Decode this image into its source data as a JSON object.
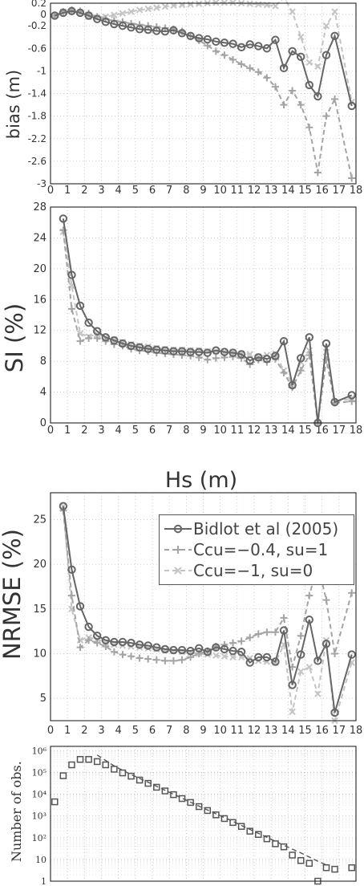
{
  "chart_data": [
    {
      "type": "line",
      "ylabel": "bias (m)",
      "xlim": [
        0,
        18
      ],
      "ylim": [
        -3,
        0.2
      ],
      "xticks": [
        "0",
        "1",
        "2",
        "3",
        "4",
        "5",
        "6",
        "7",
        "8",
        "9",
        "10",
        "11",
        "12",
        "13",
        "14",
        "15",
        "16",
        "17",
        "18"
      ],
      "yticks": [
        "0.2",
        "0",
        "-0.2",
        "-0.6",
        "-1",
        "-1.4",
        "-1.8",
        "-2.2",
        "-2.6",
        "-3"
      ],
      "ytick_values": [
        0.2,
        0,
        -0.2,
        -0.6,
        -1,
        -1.4,
        -1.8,
        -2.2,
        -2.6,
        -3
      ],
      "grid": true,
      "series": [
        {
          "x": [
            0.25,
            0.75,
            1.25,
            1.75,
            2.25,
            2.75,
            3.25,
            3.75,
            4.25,
            4.75,
            5.25,
            5.75,
            6.25,
            6.75,
            7.25,
            7.75,
            8.25,
            8.75,
            9.25,
            9.75,
            10.25,
            10.75,
            11.25,
            11.75,
            12.25,
            12.75,
            13.25,
            13.75,
            14.25,
            14.75,
            15.25,
            15.75,
            16.25,
            16.75,
            17.75
          ],
          "y": [
            -0.02,
            0.03,
            0.06,
            0.03,
            -0.02,
            -0.08,
            -0.13,
            -0.17,
            -0.2,
            -0.23,
            -0.26,
            -0.27,
            -0.29,
            -0.3,
            -0.28,
            -0.33,
            -0.38,
            -0.42,
            -0.44,
            -0.48,
            -0.5,
            -0.52,
            -0.58,
            -0.53,
            -0.56,
            -0.6,
            -0.45,
            -0.95,
            -0.65,
            -0.75,
            -1.25,
            -1.45,
            -0.72,
            -0.38,
            -1.62
          ]
        },
        {
          "x": [
            0.25,
            0.75,
            1.25,
            1.75,
            2.25,
            2.75,
            3.25,
            3.75,
            4.25,
            4.75,
            5.25,
            5.75,
            6.25,
            6.75,
            7.25,
            7.75,
            8.25,
            8.75,
            9.25,
            9.75,
            10.25,
            10.75,
            11.25,
            11.75,
            12.25,
            12.75,
            13.25,
            13.75,
            14.25,
            14.75,
            15.25,
            15.75,
            16.25,
            16.75,
            17.75
          ],
          "y": [
            -0.02,
            0.05,
            0.08,
            0.06,
            0.02,
            -0.04,
            -0.08,
            -0.11,
            -0.13,
            -0.16,
            -0.18,
            -0.2,
            -0.22,
            -0.24,
            -0.26,
            -0.3,
            -0.38,
            -0.46,
            -0.55,
            -0.65,
            -0.72,
            -0.8,
            -0.88,
            -0.95,
            -1.02,
            -1.12,
            -1.28,
            -1.6,
            -1.35,
            -1.6,
            -2.0,
            -2.8,
            -1.8,
            -1.5,
            -2.9
          ]
        },
        {
          "x": [
            0.25,
            0.75,
            1.25,
            1.75,
            2.25,
            2.75,
            3.25,
            3.75,
            4.25,
            4.75,
            5.25,
            5.75,
            6.25,
            6.75,
            7.25,
            7.75,
            8.25,
            8.75,
            9.25,
            9.75,
            10.25,
            10.75,
            11.25,
            11.75,
            12.25,
            12.75,
            13.25,
            13.75,
            14.25,
            14.75,
            15.25,
            15.75,
            16.25,
            16.75,
            17.75
          ],
          "y": [
            -0.02,
            0.05,
            0.06,
            0.03,
            -0.04,
            -0.06,
            -0.04,
            -0.01,
            0.02,
            0.05,
            0.08,
            0.1,
            0.12,
            0.14,
            0.16,
            0.17,
            0.18,
            0.19,
            0.2,
            0.21,
            0.21,
            0.21,
            0.2,
            0.19,
            0.18,
            0.17,
            0.15,
            0.3,
            0.05,
            -0.4,
            -0.85,
            -0.92,
            -0.2,
            0.05,
            -1.55
          ]
        }
      ]
    },
    {
      "type": "line",
      "ylabel": "SI (%)",
      "xlabel": "Hs (m)",
      "xlim": [
        0,
        18
      ],
      "ylim": [
        0,
        28
      ],
      "xticks": [
        "0",
        "1",
        "2",
        "3",
        "4",
        "5",
        "6",
        "7",
        "8",
        "9",
        "10",
        "11",
        "12",
        "13",
        "14",
        "15",
        "16",
        "17",
        "18"
      ],
      "yticks": [
        "0",
        "4",
        "8",
        "12",
        "16",
        "20",
        "24",
        "28"
      ],
      "ytick_values": [
        0,
        4,
        8,
        12,
        16,
        20,
        24,
        28
      ],
      "grid": true,
      "series": [
        {
          "x": [
            0.75,
            1.25,
            1.75,
            2.25,
            2.75,
            3.25,
            3.75,
            4.25,
            4.75,
            5.25,
            5.75,
            6.25,
            6.75,
            7.25,
            7.75,
            8.25,
            8.75,
            9.25,
            9.75,
            10.25,
            10.75,
            11.25,
            11.75,
            12.25,
            12.75,
            13.25,
            13.75,
            14.25,
            14.75,
            15.25,
            15.75,
            16.25,
            16.75,
            17.75
          ],
          "y": [
            26.5,
            19.2,
            15.2,
            13.0,
            11.9,
            11.1,
            10.7,
            10.3,
            10.0,
            9.8,
            9.6,
            9.5,
            9.4,
            9.3,
            9.3,
            9.2,
            9.2,
            9.1,
            9.4,
            9.2,
            9.1,
            8.9,
            8.1,
            8.5,
            8.3,
            8.7,
            10.6,
            4.9,
            8.4,
            11.1,
            0,
            10.3,
            2.7,
            3.6
          ]
        },
        {
          "x": [
            0.75,
            1.25,
            1.75,
            2.25,
            2.75,
            3.25,
            3.75,
            4.25,
            4.75,
            5.25,
            5.75,
            6.25,
            6.75,
            7.25,
            7.75,
            8.25,
            8.75,
            9.25,
            9.75,
            10.25,
            10.75,
            11.25,
            11.75,
            12.25,
            12.75,
            13.25,
            13.75,
            14.25,
            14.75,
            15.25,
            15.75,
            16.25,
            16.75,
            17.75
          ],
          "y": [
            25.0,
            14.8,
            10.6,
            11.0,
            11.0,
            10.6,
            10.2,
            10.0,
            9.6,
            9.4,
            9.3,
            9.1,
            9.0,
            8.9,
            8.8,
            8.7,
            8.5,
            8.2,
            8.4,
            8.5,
            8.6,
            8.4,
            7.6,
            8.2,
            7.9,
            8.3,
            6.5,
            4.6,
            6.8,
            8.8,
            0,
            8.2,
            2.6,
            2.8
          ]
        },
        {
          "x": [
            0.75,
            1.25,
            1.75,
            2.25,
            2.75,
            3.25,
            3.75,
            4.25,
            4.75,
            5.25,
            5.75,
            6.25,
            6.75,
            7.25,
            7.75,
            8.25,
            8.75,
            9.25,
            9.75,
            10.25,
            10.75,
            11.25,
            11.75,
            12.25,
            12.75,
            13.25,
            13.75,
            14.25,
            14.75,
            15.25,
            15.75,
            16.25,
            16.75,
            17.75
          ],
          "y": [
            24.8,
            17.8,
            11.6,
            11.2,
            11.5,
            11.1,
            10.8,
            10.5,
            10.2,
            10.0,
            9.9,
            9.7,
            9.6,
            9.5,
            9.5,
            9.4,
            9.4,
            9.3,
            9.3,
            9.2,
            9.2,
            9.0,
            8.9,
            8.6,
            8.8,
            9.0,
            6.8,
            5.2,
            7.9,
            9.4,
            0,
            9.2,
            2.7,
            3.2
          ]
        }
      ]
    },
    {
      "type": "line",
      "ylabel": "NRMSE (%)",
      "xlim": [
        0,
        18
      ],
      "ylim": [
        2.5,
        28
      ],
      "xticks": [
        "0",
        "1",
        "2",
        "3",
        "4",
        "5",
        "6",
        "7",
        "8",
        "9",
        "10",
        "11",
        "12",
        "13",
        "14",
        "15",
        "16",
        "17",
        "18"
      ],
      "yticks": [
        "5",
        "10",
        "15",
        "20",
        "25"
      ],
      "ytick_values": [
        5,
        10,
        15,
        20,
        25
      ],
      "grid": true,
      "legend": {
        "position": "right",
        "entries": [
          {
            "label": "Bidlot et al  (2005)"
          },
          {
            "label": "Ccu=−0.4, su=1"
          },
          {
            "label": "Ccu=−1,    su=0"
          }
        ]
      },
      "series": [
        {
          "name": "Bidlot et al  (2005)",
          "x": [
            0.75,
            1.25,
            1.75,
            2.25,
            2.75,
            3.25,
            3.75,
            4.25,
            4.75,
            5.25,
            5.75,
            6.25,
            6.75,
            7.25,
            7.75,
            8.25,
            8.75,
            9.25,
            9.75,
            10.25,
            10.75,
            11.25,
            11.75,
            12.25,
            12.75,
            13.25,
            13.75,
            14.25,
            14.75,
            15.25,
            15.75,
            16.25,
            16.75,
            17.75
          ],
          "y": [
            26.5,
            19.4,
            15.3,
            13.0,
            12.0,
            11.5,
            11.3,
            11.3,
            11.2,
            11.0,
            10.9,
            10.7,
            10.5,
            10.4,
            10.4,
            10.3,
            10.6,
            10.2,
            10.7,
            10.5,
            10.3,
            10.2,
            9.0,
            9.6,
            9.6,
            9.1,
            12.6,
            6.5,
            9.9,
            13.8,
            9.2,
            11.1,
            3.4,
            9.9
          ]
        },
        {
          "name": "Ccu=−0.4, su=1",
          "x": [
            0.75,
            1.25,
            1.75,
            2.25,
            2.75,
            3.25,
            3.75,
            4.25,
            4.75,
            5.25,
            5.75,
            6.25,
            6.75,
            7.25,
            7.75,
            8.25,
            8.75,
            9.25,
            9.75,
            10.25,
            10.75,
            11.25,
            11.75,
            12.25,
            12.75,
            13.25,
            13.75,
            14.25,
            14.75,
            15.25,
            15.75,
            16.25,
            16.75,
            17.75
          ],
          "y": [
            26.0,
            16.5,
            10.7,
            11.5,
            11.2,
            10.8,
            10.2,
            9.9,
            9.7,
            9.5,
            9.4,
            9.3,
            9.2,
            9.2,
            9.3,
            9.6,
            10.0,
            10.3,
            10.8,
            11.0,
            11.2,
            11.4,
            11.8,
            12.2,
            12.4,
            12.4,
            14.0,
            8.5,
            12.0,
            16.5,
            20.0,
            16.0,
            10.0,
            16.8
          ]
        },
        {
          "name": "Ccu=−1,    su=0",
          "x": [
            0.75,
            1.25,
            1.75,
            2.25,
            2.75,
            3.25,
            3.75,
            4.25,
            4.75,
            5.25,
            5.75,
            6.25,
            6.75,
            7.25,
            7.75,
            8.25,
            8.75,
            9.25,
            9.75,
            10.25,
            10.75,
            11.25,
            11.75,
            12.25,
            12.75,
            13.25,
            13.75,
            14.25,
            14.75,
            15.25,
            15.75,
            16.25,
            16.75,
            17.75
          ],
          "y": [
            26.5,
            15.0,
            11.5,
            11.8,
            11.6,
            11.2,
            11.0,
            10.9,
            10.8,
            10.7,
            10.6,
            10.5,
            10.4,
            10.3,
            10.2,
            10.1,
            10.0,
            9.9,
            9.8,
            9.7,
            9.6,
            9.6,
            9.5,
            9.2,
            9.1,
            9.0,
            11.0,
            3.5,
            8.0,
            8.5,
            5.5,
            11.5,
            2.5,
            9.0
          ]
        }
      ]
    },
    {
      "type": "scatter",
      "ylabel": "Number of obs.",
      "xlim": [
        0,
        18
      ],
      "yscale": "log",
      "ylim_exponent": [
        0,
        6
      ],
      "yticks": [
        "1",
        "10",
        "10²",
        "10³",
        "10⁴",
        "10⁵",
        "10⁶"
      ],
      "ytick_exponents": [
        0,
        1,
        2,
        3,
        4,
        5,
        6
      ],
      "grid": true,
      "x": [
        0.25,
        0.75,
        1.25,
        1.75,
        2.25,
        2.75,
        3.25,
        3.75,
        4.25,
        4.75,
        5.25,
        5.75,
        6.25,
        6.75,
        7.25,
        7.75,
        8.25,
        8.75,
        9.25,
        9.75,
        10.25,
        10.75,
        11.25,
        11.75,
        12.25,
        12.75,
        13.25,
        13.75,
        14.25,
        14.75,
        15.25,
        15.75,
        16.25,
        16.75,
        17.75
      ],
      "log10_y": [
        3.65,
        4.85,
        5.35,
        5.6,
        5.6,
        5.5,
        5.35,
        5.15,
        4.98,
        4.83,
        4.65,
        4.5,
        4.32,
        4.15,
        3.98,
        3.8,
        3.62,
        3.43,
        3.25,
        3.05,
        2.88,
        2.7,
        2.52,
        2.3,
        2.15,
        1.95,
        1.72,
        1.58,
        1.2,
        0.95,
        0.82,
        0.0,
        0.62,
        0.55,
        0.62
      ],
      "trend_x": [
        2.75,
        3.75,
        4.75,
        5.75,
        6.75,
        7.75,
        8.75,
        9.75,
        10.75,
        11.75,
        12.75,
        13.75,
        14.75,
        15.75,
        16.25
      ],
      "trend_log10_y": [
        5.8,
        5.3,
        4.9,
        4.55,
        4.18,
        3.82,
        3.45,
        3.1,
        2.75,
        2.38,
        2.02,
        1.65,
        1.3,
        0.92,
        0.75
      ]
    }
  ]
}
